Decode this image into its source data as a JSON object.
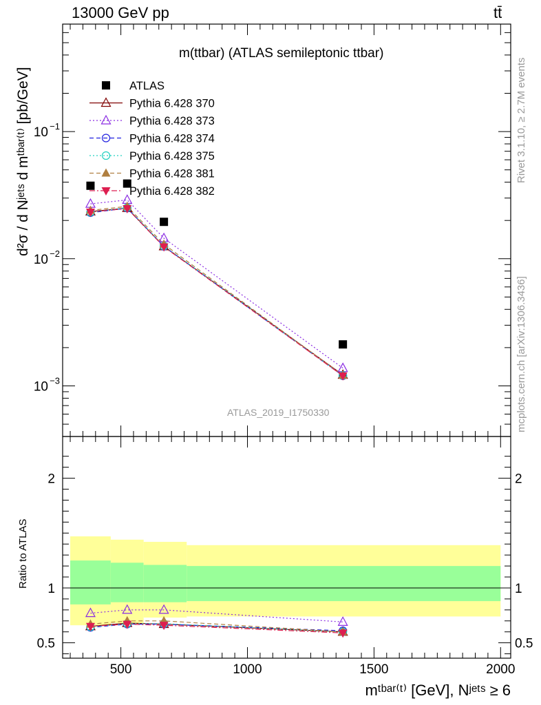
{
  "header": {
    "left": "13000 GeV pp",
    "right": "tt̄"
  },
  "side_text": {
    "rivet": "Rivet 3.1.10, ≥ 2.7M events",
    "mcplots": "mcplots.cern.ch [arXiv:1306.3436]"
  },
  "analysis_id": "ATLAS_2019_I1750330",
  "ratio_ylabel": "Ratio to ATLAS",
  "colors": {
    "atlas": "#000000",
    "p370": "#7f0000",
    "p373": "#8a2be2",
    "p374": "#1f1fe0",
    "p375": "#20d0c0",
    "p381": "#b07f40",
    "p382": "#dd1f50",
    "band_outer": "#ffff99",
    "band_inner": "#99ff99"
  },
  "chart_data": [
    {
      "type": "scatter",
      "title": "m(ttbar) (ATLAS semileptonic ttbar)",
      "xlabel": "m^{tbar{t}} [GeV], N^{jets} ≥ 6",
      "ylabel": "d²σ / d N^{jets} d m^{tbar{t}} [pb/GeV]",
      "yscale": "log",
      "xlim": [
        270,
        2040
      ],
      "ylim": [
        0.0004,
        0.7
      ],
      "y_ticks": [
        "10^{-1}",
        "10^{-2}",
        "10^{-3}"
      ],
      "x": [
        380,
        525,
        670,
        1377
      ],
      "series": [
        {
          "name": "ATLAS",
          "style": "square",
          "values": [
            0.0375,
            0.039,
            0.0195,
            0.00212
          ]
        },
        {
          "name": "Pythia 6.428 370",
          "style": "triangle-up-open",
          "dash": "solid",
          "values": [
            0.0235,
            0.025,
            0.0125,
            0.00122
          ]
        },
        {
          "name": "Pythia 6.428 373",
          "style": "triangle-up-open",
          "dash": "dot",
          "values": [
            0.027,
            0.029,
            0.0145,
            0.00138
          ]
        },
        {
          "name": "Pythia 6.428 374",
          "style": "circle-open",
          "dash": "dash",
          "values": [
            0.023,
            0.025,
            0.0125,
            0.0012
          ]
        },
        {
          "name": "Pythia 6.428 375",
          "style": "circle-open",
          "dash": "dot",
          "values": [
            0.0232,
            0.0252,
            0.0126,
            0.00121
          ]
        },
        {
          "name": "Pythia 6.428 381",
          "style": "triangle-up-filled",
          "dash": "dash",
          "values": [
            0.024,
            0.0258,
            0.013,
            0.00121
          ]
        },
        {
          "name": "Pythia 6.428 382",
          "style": "triangle-down-filled",
          "dash": "dashdot",
          "values": [
            0.0233,
            0.0248,
            0.0124,
            0.0012
          ]
        }
      ]
    },
    {
      "type": "line",
      "ylabel": "Ratio to ATLAS",
      "xlabel": "m^{tbar{t}} [GeV], N^{jets} ≥ 6",
      "xlim": [
        270,
        2040
      ],
      "ylim": [
        0.36,
        2.38
      ],
      "x_ticks": [
        "500",
        "1000",
        "1500",
        "2000"
      ],
      "y_ticks": [
        "0.5",
        "1",
        "2"
      ],
      "x": [
        380,
        525,
        670,
        1377
      ],
      "bands": [
        {
          "x_edges": [
            300,
            460,
            460,
            590,
            590,
            760,
            760,
            2000
          ],
          "outer": [
            [
              0.66,
              1.47
            ],
            [
              0.68,
              1.44
            ],
            [
              0.73,
              1.42
            ],
            [
              0.74,
              1.39
            ]
          ],
          "inner": [
            [
              0.85,
              1.25
            ],
            [
              0.87,
              1.23
            ],
            [
              0.87,
              1.21
            ],
            [
              0.88,
              1.2
            ]
          ],
          "segments": [
            [
              300,
              460
            ],
            [
              460,
              590
            ],
            [
              590,
              760
            ],
            [
              760,
              2000
            ]
          ]
        }
      ],
      "series": [
        {
          "name": "Pythia 6.428 370",
          "values": [
            0.65,
            0.68,
            0.67,
            0.6
          ]
        },
        {
          "name": "Pythia 6.428 373",
          "values": [
            0.77,
            0.8,
            0.8,
            0.69
          ]
        },
        {
          "name": "Pythia 6.428 374",
          "values": [
            0.64,
            0.67,
            0.67,
            0.61
          ]
        },
        {
          "name": "Pythia 6.428 375",
          "values": [
            0.645,
            0.675,
            0.675,
            0.6
          ]
        },
        {
          "name": "Pythia 6.428 381",
          "values": [
            0.67,
            0.7,
            0.7,
            0.6
          ]
        },
        {
          "name": "Pythia 6.428 382",
          "values": [
            0.65,
            0.67,
            0.66,
            0.59
          ]
        }
      ]
    }
  ]
}
